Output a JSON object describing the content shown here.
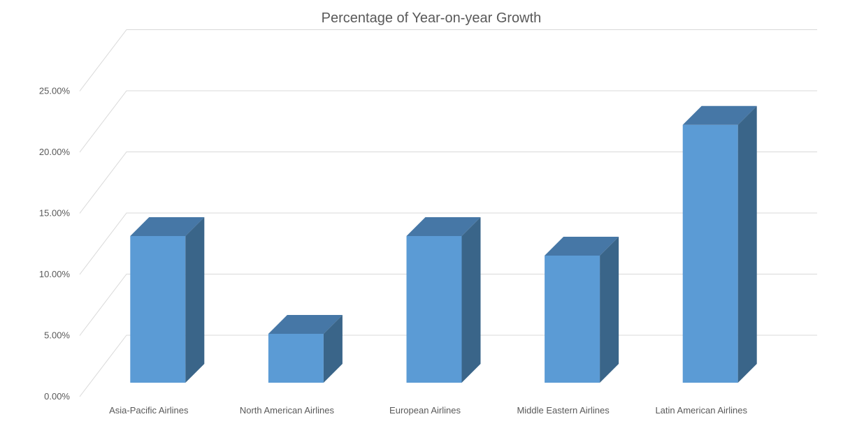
{
  "chart_data": {
    "type": "bar",
    "title": "Percentage of Year-on-year Growth",
    "categories": [
      "Asia-Pacific Airlines",
      "North American Airlines",
      "European Airlines",
      "Middle Eastern Airlines",
      "Latin American Airlines"
    ],
    "values": [
      0.12,
      0.04,
      0.12,
      0.104,
      0.211
    ],
    "value_format": "percent",
    "ylim": [
      0,
      0.275
    ],
    "yticks": [
      0,
      0.05,
      0.1,
      0.15,
      0.2,
      0.25
    ],
    "ytick_labels": [
      "0.00%",
      "5.00%",
      "10.00%",
      "15.00%",
      "20.00%",
      "25.00%"
    ],
    "xlabel": "",
    "ylabel": "",
    "grid": true,
    "legend": "none",
    "style": "3d-column",
    "colors": {
      "bar_front": "#5b9bd5",
      "bar_top": "#4677a6",
      "bar_side": "#3a6589",
      "grid": "#d9d9d9",
      "text": "#595959"
    }
  }
}
